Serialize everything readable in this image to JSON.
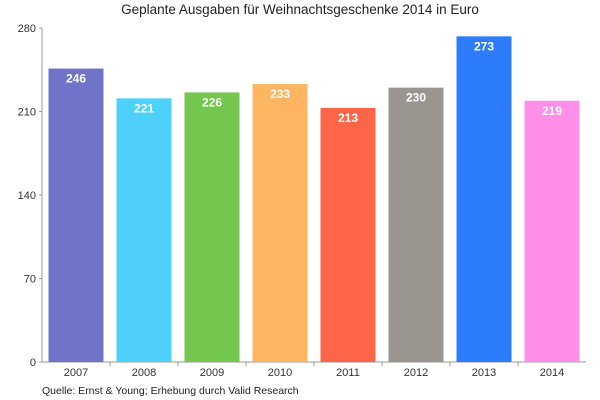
{
  "chart_data": {
    "type": "bar",
    "title": "Geplante Ausgaben für Weihnachtsgeschenke 2014 in Euro",
    "categories": [
      "2007",
      "2008",
      "2009",
      "2010",
      "2011",
      "2012",
      "2013",
      "2014"
    ],
    "values": [
      246,
      221,
      226,
      233,
      213,
      230,
      273,
      219
    ],
    "colors": [
      "#7074c8",
      "#4dd0fa",
      "#74c74e",
      "#fdb561",
      "#fd6548",
      "#9b9590",
      "#2c7cfc",
      "#fe8fe9"
    ],
    "ylim": [
      0,
      280
    ],
    "yticks": [
      0,
      70,
      140,
      210,
      280
    ],
    "xlabel": "",
    "ylabel": "",
    "grid": false,
    "data_labels": true,
    "source": "Quelle: Ernst & Young; Erhebung durch Valid Research"
  }
}
